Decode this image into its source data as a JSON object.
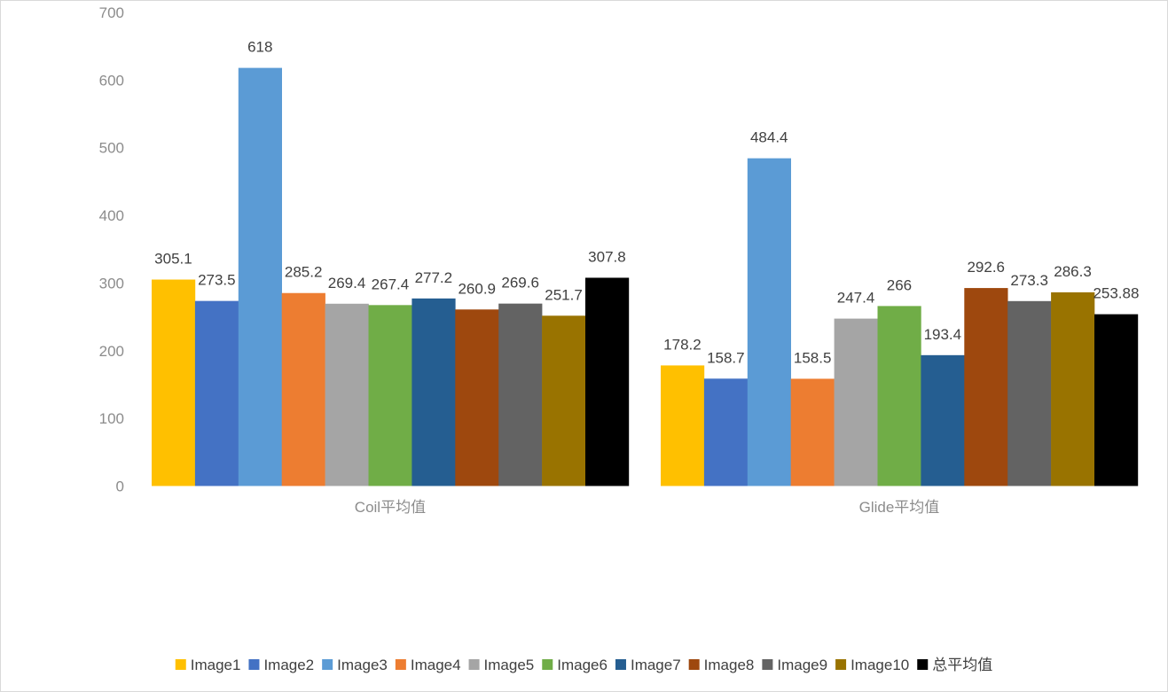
{
  "chart_data": {
    "type": "bar",
    "title": "",
    "xlabel": "",
    "ylabel": "",
    "ylim": [
      0,
      700
    ],
    "yticks": [
      0,
      100,
      200,
      300,
      400,
      500,
      600,
      700
    ],
    "grid": false,
    "legend_position": "bottom",
    "categories": [
      "Coil平均值",
      "Glide平均值"
    ],
    "series": [
      {
        "name": "Image1",
        "color": "#FFC000",
        "values": [
          305.1,
          178.2
        ],
        "labels": [
          "305.1",
          "178.2"
        ]
      },
      {
        "name": "Image2",
        "color": "#4472C4",
        "values": [
          273.5,
          158.7
        ],
        "labels": [
          "273.5",
          "158.7"
        ]
      },
      {
        "name": "Image3",
        "color": "#5B9BD5",
        "values": [
          618,
          484.4
        ],
        "labels": [
          "618",
          "484.4"
        ]
      },
      {
        "name": "Image4",
        "color": "#ED7D31",
        "values": [
          285.2,
          158.5
        ],
        "labels": [
          "285.2",
          "158.5"
        ]
      },
      {
        "name": "Image5",
        "color": "#A5A5A5",
        "values": [
          269.4,
          247.4
        ],
        "labels": [
          "269.4",
          "247.4"
        ]
      },
      {
        "name": "Image6",
        "color": "#70AD47",
        "values": [
          267.4,
          266
        ],
        "labels": [
          "267.4",
          "266"
        ]
      },
      {
        "name": "Image7",
        "color": "#255E91",
        "values": [
          277.2,
          193.4
        ],
        "labels": [
          "277.2",
          "193.4"
        ]
      },
      {
        "name": "Image8",
        "color": "#9E480E",
        "values": [
          260.9,
          292.6
        ],
        "labels": [
          "260.9",
          "292.6"
        ]
      },
      {
        "name": "Image9",
        "color": "#636363",
        "values": [
          269.6,
          273.3
        ],
        "labels": [
          "269.6",
          "273.3"
        ]
      },
      {
        "name": "Image10",
        "color": "#997300",
        "values": [
          251.7,
          286.3
        ],
        "labels": [
          "251.7",
          "286.3"
        ]
      },
      {
        "name": "总平均值",
        "color": "#000000",
        "values": [
          307.8,
          253.88
        ],
        "labels": [
          "307.8",
          "253.88"
        ]
      }
    ]
  }
}
